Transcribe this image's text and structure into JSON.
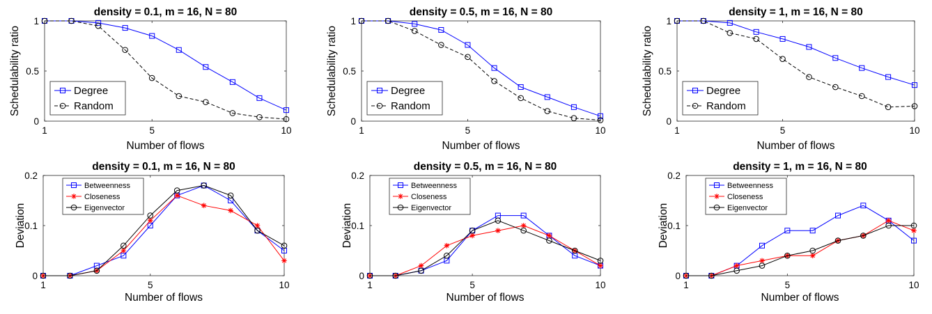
{
  "chart_data": [
    {
      "type": "line",
      "title": "density = 0.1, m = 16, N = 80",
      "xlabel": "Number of flows",
      "ylabel": "Schedulability ratio",
      "xlim": [
        1,
        10
      ],
      "ylim": [
        0,
        1
      ],
      "xticks": [
        1,
        5,
        10
      ],
      "yticks": [
        0,
        0.5,
        1
      ],
      "grid": false,
      "legend_position": "bottom-left",
      "x": [
        1,
        2,
        3,
        4,
        5,
        6,
        7,
        8,
        9,
        10
      ],
      "series": [
        {
          "name": "Degree",
          "color": "#0000ff",
          "dash": "solid",
          "marker": "square",
          "values": [
            1,
            1,
            0.98,
            0.93,
            0.85,
            0.71,
            0.54,
            0.39,
            0.23,
            0.11
          ]
        },
        {
          "name": "Random",
          "color": "#000000",
          "dash": "dashed",
          "marker": "circle",
          "values": [
            1,
            1,
            0.95,
            0.71,
            0.43,
            0.25,
            0.19,
            0.08,
            0.04,
            0.02
          ]
        }
      ]
    },
    {
      "type": "line",
      "title": "density = 0.5, m = 16, N = 80",
      "xlabel": "Number of flows",
      "ylabel": "Schedulability ratio",
      "xlim": [
        1,
        10
      ],
      "ylim": [
        0,
        1
      ],
      "xticks": [
        1,
        5,
        10
      ],
      "yticks": [
        0,
        0.5,
        1
      ],
      "grid": false,
      "legend_position": "bottom-left",
      "x": [
        1,
        2,
        3,
        4,
        5,
        6,
        7,
        8,
        9,
        10
      ],
      "series": [
        {
          "name": "Degree",
          "color": "#0000ff",
          "dash": "solid",
          "marker": "square",
          "values": [
            1,
            1,
            0.97,
            0.91,
            0.76,
            0.53,
            0.34,
            0.24,
            0.14,
            0.05
          ]
        },
        {
          "name": "Random",
          "color": "#000000",
          "dash": "dashed",
          "marker": "circle",
          "values": [
            1,
            1,
            0.9,
            0.76,
            0.64,
            0.4,
            0.23,
            0.1,
            0.03,
            0.01
          ]
        }
      ]
    },
    {
      "type": "line",
      "title": "density = 1, m = 16, N = 80",
      "xlabel": "Number of flows",
      "ylabel": "Schedulability ratio",
      "xlim": [
        1,
        10
      ],
      "ylim": [
        0,
        1
      ],
      "xticks": [
        1,
        5,
        10
      ],
      "yticks": [
        0,
        0.5,
        1
      ],
      "grid": false,
      "legend_position": "bottom-left",
      "x": [
        1,
        2,
        3,
        4,
        5,
        6,
        7,
        8,
        9,
        10
      ],
      "series": [
        {
          "name": "Degree",
          "color": "#0000ff",
          "dash": "solid",
          "marker": "square",
          "values": [
            1,
            1,
            0.98,
            0.89,
            0.82,
            0.74,
            0.63,
            0.53,
            0.44,
            0.36
          ]
        },
        {
          "name": "Random",
          "color": "#000000",
          "dash": "dashed",
          "marker": "circle",
          "values": [
            1,
            1,
            0.88,
            0.82,
            0.62,
            0.44,
            0.34,
            0.25,
            0.14,
            0.15
          ]
        }
      ]
    },
    {
      "type": "line",
      "title": "density = 0.1, m = 16, N = 80",
      "xlabel": "Number of flows",
      "ylabel": "Deviation",
      "xlim": [
        1,
        10
      ],
      "ylim": [
        0,
        0.2
      ],
      "xticks": [
        1,
        5,
        10
      ],
      "yticks": [
        0,
        0.1,
        0.2
      ],
      "grid": false,
      "legend_position": "top-left",
      "x": [
        1,
        2,
        3,
        4,
        5,
        6,
        7,
        8,
        9,
        10
      ],
      "series": [
        {
          "name": "Betweenness",
          "color": "#0000ff",
          "dash": "solid",
          "marker": "square",
          "values": [
            0,
            0,
            0.02,
            0.04,
            0.1,
            0.16,
            0.18,
            0.15,
            0.09,
            0.05
          ]
        },
        {
          "name": "Closeness",
          "color": "#ff0000",
          "dash": "solid",
          "marker": "star",
          "values": [
            0,
            0,
            0.01,
            0.05,
            0.11,
            0.16,
            0.14,
            0.13,
            0.1,
            0.03
          ]
        },
        {
          "name": "Eigenvector",
          "color": "#000000",
          "dash": "solid",
          "marker": "circle",
          "values": [
            0,
            0,
            0.01,
            0.06,
            0.12,
            0.17,
            0.18,
            0.16,
            0.09,
            0.06
          ]
        }
      ]
    },
    {
      "type": "line",
      "title": "density = 0.5, m = 16, N = 80",
      "xlabel": "Number of flows",
      "ylabel": "Deviation",
      "xlim": [
        1,
        10
      ],
      "ylim": [
        0,
        0.2
      ],
      "xticks": [
        1,
        5,
        10
      ],
      "yticks": [
        0,
        0.1,
        0.2
      ],
      "grid": false,
      "legend_position": "top-left",
      "x": [
        1,
        2,
        3,
        4,
        5,
        6,
        7,
        8,
        9,
        10
      ],
      "series": [
        {
          "name": "Betweenness",
          "color": "#0000ff",
          "dash": "solid",
          "marker": "square",
          "values": [
            0,
            0,
            0.01,
            0.03,
            0.09,
            0.12,
            0.12,
            0.08,
            0.04,
            0.02
          ]
        },
        {
          "name": "Closeness",
          "color": "#ff0000",
          "dash": "solid",
          "marker": "star",
          "values": [
            0,
            0,
            0.02,
            0.06,
            0.08,
            0.09,
            0.1,
            0.08,
            0.05,
            0.02
          ]
        },
        {
          "name": "Eigenvector",
          "color": "#000000",
          "dash": "solid",
          "marker": "circle",
          "values": [
            0,
            0,
            0.01,
            0.04,
            0.09,
            0.11,
            0.09,
            0.07,
            0.05,
            0.03
          ]
        }
      ]
    },
    {
      "type": "line",
      "title": "density = 1, m = 16, N = 80",
      "xlabel": "Number of flows",
      "ylabel": "Deviation",
      "xlim": [
        1,
        10
      ],
      "ylim": [
        0,
        0.2
      ],
      "xticks": [
        1,
        5,
        10
      ],
      "yticks": [
        0,
        0.1,
        0.2
      ],
      "grid": false,
      "legend_position": "top-left",
      "x": [
        1,
        2,
        3,
        4,
        5,
        6,
        7,
        8,
        9,
        10
      ],
      "series": [
        {
          "name": "Betweenness",
          "color": "#0000ff",
          "dash": "solid",
          "marker": "square",
          "values": [
            0,
            0,
            0.02,
            0.06,
            0.09,
            0.09,
            0.12,
            0.14,
            0.11,
            0.07
          ]
        },
        {
          "name": "Closeness",
          "color": "#ff0000",
          "dash": "solid",
          "marker": "star",
          "values": [
            0,
            0,
            0.02,
            0.03,
            0.04,
            0.04,
            0.07,
            0.08,
            0.11,
            0.09
          ]
        },
        {
          "name": "Eigenvector",
          "color": "#000000",
          "dash": "solid",
          "marker": "circle",
          "values": [
            0,
            0,
            0.01,
            0.02,
            0.04,
            0.05,
            0.07,
            0.08,
            0.1,
            0.1
          ]
        }
      ]
    }
  ]
}
